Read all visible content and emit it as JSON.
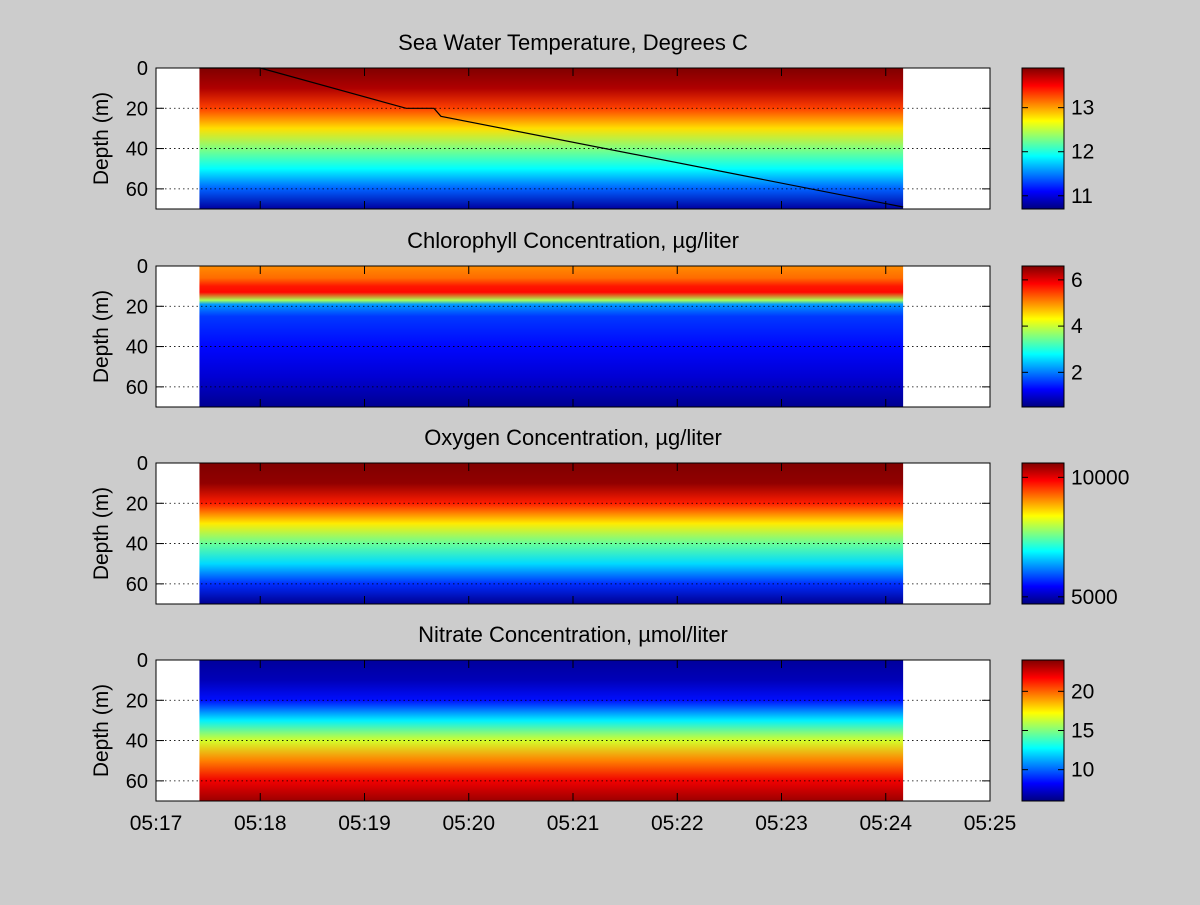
{
  "chart_data": [
    {
      "type": "heatmap",
      "title": "Sea Water Temperature, Degrees C",
      "ylabel": "Depth (m)",
      "ylim": [
        70,
        0
      ],
      "yticks": [
        0,
        20,
        40,
        60
      ],
      "colorbar": {
        "range": [
          10.7,
          13.9
        ],
        "ticks": [
          11,
          12,
          13
        ]
      },
      "data_time_range": [
        "05:17:25",
        "05:24:10"
      ],
      "profile": [
        {
          "depth": 0,
          "value": 13.9
        },
        {
          "depth": 10,
          "value": 13.75
        },
        {
          "depth": 20,
          "value": 13.3
        },
        {
          "depth": 30,
          "value": 12.8
        },
        {
          "depth": 40,
          "value": 12.3
        },
        {
          "depth": 50,
          "value": 11.9
        },
        {
          "depth": 60,
          "value": 11.4
        },
        {
          "depth": 70,
          "value": 10.8
        }
      ],
      "track": [
        {
          "time": "05:17:25",
          "depth": 0
        },
        {
          "time": "05:18:00",
          "depth": 0
        },
        {
          "time": "05:19:24",
          "depth": 20
        },
        {
          "time": "05:19:40",
          "depth": 20
        },
        {
          "time": "05:19:44",
          "depth": 24
        },
        {
          "time": "05:24:10",
          "depth": 69
        }
      ]
    },
    {
      "type": "heatmap",
      "title": "Chlorophyll Concentration, µg/liter",
      "ylabel": "Depth (m)",
      "ylim": [
        70,
        0
      ],
      "yticks": [
        0,
        20,
        40,
        60
      ],
      "colorbar": {
        "range": [
          0.5,
          6.6
        ],
        "ticks": [
          2,
          4,
          6
        ]
      },
      "data_time_range": [
        "05:17:25",
        "05:24:10"
      ],
      "profile": [
        {
          "depth": 0,
          "value": 5.0
        },
        {
          "depth": 6,
          "value": 5.2
        },
        {
          "depth": 10,
          "value": 5.7
        },
        {
          "depth": 13,
          "value": 5.8
        },
        {
          "depth": 17,
          "value": 3.8
        },
        {
          "depth": 19,
          "value": 2.2
        },
        {
          "depth": 25,
          "value": 1.6
        },
        {
          "depth": 40,
          "value": 1.3
        },
        {
          "depth": 55,
          "value": 1.0
        },
        {
          "depth": 70,
          "value": 0.6
        }
      ]
    },
    {
      "type": "heatmap",
      "title": "Oxygen Concentration, µg/liter",
      "ylabel": "Depth (m)",
      "ylim": [
        70,
        0
      ],
      "yticks": [
        0,
        20,
        40,
        60
      ],
      "colorbar": {
        "range": [
          4700,
          10600
        ],
        "ticks": [
          5000,
          10000
        ]
      },
      "data_time_range": [
        "05:17:25",
        "05:24:10"
      ],
      "profile": [
        {
          "depth": 0,
          "value": 10600
        },
        {
          "depth": 10,
          "value": 10500
        },
        {
          "depth": 20,
          "value": 9700
        },
        {
          "depth": 30,
          "value": 8500
        },
        {
          "depth": 40,
          "value": 7500
        },
        {
          "depth": 50,
          "value": 6700
        },
        {
          "depth": 60,
          "value": 5700
        },
        {
          "depth": 70,
          "value": 4800
        }
      ]
    },
    {
      "type": "heatmap",
      "title": "Nitrate Concentration, µmol/liter",
      "ylabel": "Depth (m)",
      "ylim": [
        70,
        0
      ],
      "yticks": [
        0,
        20,
        40,
        60
      ],
      "xticks": [
        "05:17",
        "05:18",
        "05:19",
        "05:20",
        "05:21",
        "05:22",
        "05:23",
        "05:24",
        "05:25"
      ],
      "colorbar": {
        "range": [
          6,
          24
        ],
        "ticks": [
          10,
          15,
          20
        ]
      },
      "data_time_range": [
        "05:17:25",
        "05:24:10"
      ],
      "profile": [
        {
          "depth": 0,
          "value": 6.5
        },
        {
          "depth": 10,
          "value": 7.0
        },
        {
          "depth": 20,
          "value": 8.5
        },
        {
          "depth": 30,
          "value": 12.5
        },
        {
          "depth": 40,
          "value": 16.5
        },
        {
          "depth": 50,
          "value": 19.5
        },
        {
          "depth": 60,
          "value": 22.0
        },
        {
          "depth": 70,
          "value": 23.5
        }
      ]
    }
  ]
}
